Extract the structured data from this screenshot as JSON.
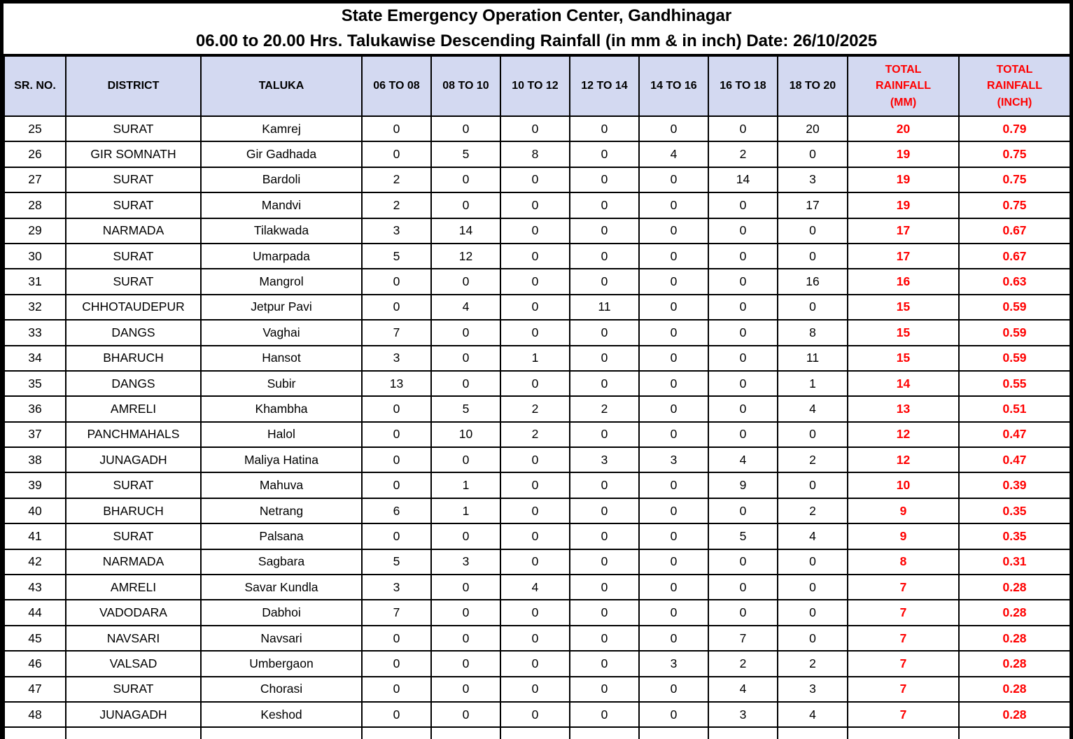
{
  "title": {
    "line1": "State Emergency Operation Center, Gandhinagar",
    "line2": "06.00 to 20.00 Hrs. Talukawise Descending Rainfall (in mm & in inch) Date: 26/10/2025"
  },
  "colors": {
    "header_background": "#d3d9f1",
    "accent_red": "#ff0000",
    "border": "#000000",
    "text": "#000000"
  },
  "table": {
    "header": [
      {
        "key": "sr-no",
        "lines": [
          "SR. NO."
        ]
      },
      {
        "key": "district",
        "lines": [
          "DISTRICT"
        ]
      },
      {
        "key": "taluka",
        "lines": [
          "TALUKA"
        ]
      },
      {
        "key": "06-to-08",
        "lines": [
          "06 TO 08"
        ]
      },
      {
        "key": "08-to-10",
        "lines": [
          "08 TO 10"
        ]
      },
      {
        "key": "10-to-12",
        "lines": [
          "10 TO 12"
        ]
      },
      {
        "key": "12-to-14",
        "lines": [
          "12 TO 14"
        ]
      },
      {
        "key": "14-to-16",
        "lines": [
          "14 TO 16"
        ]
      },
      {
        "key": "16-to-18",
        "lines": [
          "16 TO 18"
        ]
      },
      {
        "key": "18-to-20",
        "lines": [
          "18 TO 20"
        ]
      },
      {
        "key": "total-mm",
        "lines": [
          "TOTAL",
          "RAINFALL",
          "(MM)"
        ],
        "accent": true
      },
      {
        "key": "total-inch",
        "lines": [
          "TOTAL",
          "RAINFALL",
          "(INCH)"
        ],
        "accent": true
      }
    ],
    "rows": [
      {
        "sr": "25",
        "district": "SURAT",
        "taluka": "Kamrej",
        "hourly": [
          "0",
          "0",
          "0",
          "0",
          "0",
          "0",
          "20"
        ],
        "total_mm": "20",
        "total_inch": "0.79"
      },
      {
        "sr": "26",
        "district": "GIR SOMNATH",
        "taluka": "Gir Gadhada",
        "hourly": [
          "0",
          "5",
          "8",
          "0",
          "4",
          "2",
          "0"
        ],
        "total_mm": "19",
        "total_inch": "0.75"
      },
      {
        "sr": "27",
        "district": "SURAT",
        "taluka": "Bardoli",
        "hourly": [
          "2",
          "0",
          "0",
          "0",
          "0",
          "14",
          "3"
        ],
        "total_mm": "19",
        "total_inch": "0.75"
      },
      {
        "sr": "28",
        "district": "SURAT",
        "taluka": "Mandvi",
        "hourly": [
          "2",
          "0",
          "0",
          "0",
          "0",
          "0",
          "17"
        ],
        "total_mm": "19",
        "total_inch": "0.75"
      },
      {
        "sr": "29",
        "district": "NARMADA",
        "taluka": "Tilakwada",
        "hourly": [
          "3",
          "14",
          "0",
          "0",
          "0",
          "0",
          "0"
        ],
        "total_mm": "17",
        "total_inch": "0.67"
      },
      {
        "sr": "30",
        "district": "SURAT",
        "taluka": "Umarpada",
        "hourly": [
          "5",
          "12",
          "0",
          "0",
          "0",
          "0",
          "0"
        ],
        "total_mm": "17",
        "total_inch": "0.67"
      },
      {
        "sr": "31",
        "district": "SURAT",
        "taluka": "Mangrol",
        "hourly": [
          "0",
          "0",
          "0",
          "0",
          "0",
          "0",
          "16"
        ],
        "total_mm": "16",
        "total_inch": "0.63"
      },
      {
        "sr": "32",
        "district": "CHHOTAUDEPUR",
        "taluka": "Jetpur Pavi",
        "hourly": [
          "0",
          "4",
          "0",
          "11",
          "0",
          "0",
          "0"
        ],
        "total_mm": "15",
        "total_inch": "0.59"
      },
      {
        "sr": "33",
        "district": "DANGS",
        "taluka": "Vaghai",
        "hourly": [
          "7",
          "0",
          "0",
          "0",
          "0",
          "0",
          "8"
        ],
        "total_mm": "15",
        "total_inch": "0.59"
      },
      {
        "sr": "34",
        "district": "BHARUCH",
        "taluka": "Hansot",
        "hourly": [
          "3",
          "0",
          "1",
          "0",
          "0",
          "0",
          "11"
        ],
        "total_mm": "15",
        "total_inch": "0.59"
      },
      {
        "sr": "35",
        "district": "DANGS",
        "taluka": "Subir",
        "hourly": [
          "13",
          "0",
          "0",
          "0",
          "0",
          "0",
          "1"
        ],
        "total_mm": "14",
        "total_inch": "0.55"
      },
      {
        "sr": "36",
        "district": "AMRELI",
        "taluka": "Khambha",
        "hourly": [
          "0",
          "5",
          "2",
          "2",
          "0",
          "0",
          "4"
        ],
        "total_mm": "13",
        "total_inch": "0.51"
      },
      {
        "sr": "37",
        "district": "PANCHMAHALS",
        "taluka": "Halol",
        "hourly": [
          "0",
          "10",
          "2",
          "0",
          "0",
          "0",
          "0"
        ],
        "total_mm": "12",
        "total_inch": "0.47"
      },
      {
        "sr": "38",
        "district": "JUNAGADH",
        "taluka": "Maliya Hatina",
        "hourly": [
          "0",
          "0",
          "0",
          "3",
          "3",
          "4",
          "2"
        ],
        "total_mm": "12",
        "total_inch": "0.47"
      },
      {
        "sr": "39",
        "district": "SURAT",
        "taluka": "Mahuva",
        "hourly": [
          "0",
          "1",
          "0",
          "0",
          "0",
          "9",
          "0"
        ],
        "total_mm": "10",
        "total_inch": "0.39"
      },
      {
        "sr": "40",
        "district": "BHARUCH",
        "taluka": "Netrang",
        "hourly": [
          "6",
          "1",
          "0",
          "0",
          "0",
          "0",
          "2"
        ],
        "total_mm": "9",
        "total_inch": "0.35"
      },
      {
        "sr": "41",
        "district": "SURAT",
        "taluka": "Palsana",
        "hourly": [
          "0",
          "0",
          "0",
          "0",
          "0",
          "5",
          "4"
        ],
        "total_mm": "9",
        "total_inch": "0.35"
      },
      {
        "sr": "42",
        "district": "NARMADA",
        "taluka": "Sagbara",
        "hourly": [
          "5",
          "3",
          "0",
          "0",
          "0",
          "0",
          "0"
        ],
        "total_mm": "8",
        "total_inch": "0.31"
      },
      {
        "sr": "43",
        "district": "AMRELI",
        "taluka": "Savar Kundla",
        "hourly": [
          "3",
          "0",
          "4",
          "0",
          "0",
          "0",
          "0"
        ],
        "total_mm": "7",
        "total_inch": "0.28"
      },
      {
        "sr": "44",
        "district": "VADODARA",
        "taluka": "Dabhoi",
        "hourly": [
          "7",
          "0",
          "0",
          "0",
          "0",
          "0",
          "0"
        ],
        "total_mm": "7",
        "total_inch": "0.28"
      },
      {
        "sr": "45",
        "district": "NAVSARI",
        "taluka": "Navsari",
        "hourly": [
          "0",
          "0",
          "0",
          "0",
          "0",
          "7",
          "0"
        ],
        "total_mm": "7",
        "total_inch": "0.28"
      },
      {
        "sr": "46",
        "district": "VALSAD",
        "taluka": "Umbergaon",
        "hourly": [
          "0",
          "0",
          "0",
          "0",
          "3",
          "2",
          "2"
        ],
        "total_mm": "7",
        "total_inch": "0.28"
      },
      {
        "sr": "47",
        "district": "SURAT",
        "taluka": "Chorasi",
        "hourly": [
          "0",
          "0",
          "0",
          "0",
          "0",
          "4",
          "3"
        ],
        "total_mm": "7",
        "total_inch": "0.28"
      },
      {
        "sr": "48",
        "district": "JUNAGADH",
        "taluka": "Keshod",
        "hourly": [
          "0",
          "0",
          "0",
          "0",
          "0",
          "3",
          "4"
        ],
        "total_mm": "7",
        "total_inch": "0.28"
      }
    ]
  }
}
